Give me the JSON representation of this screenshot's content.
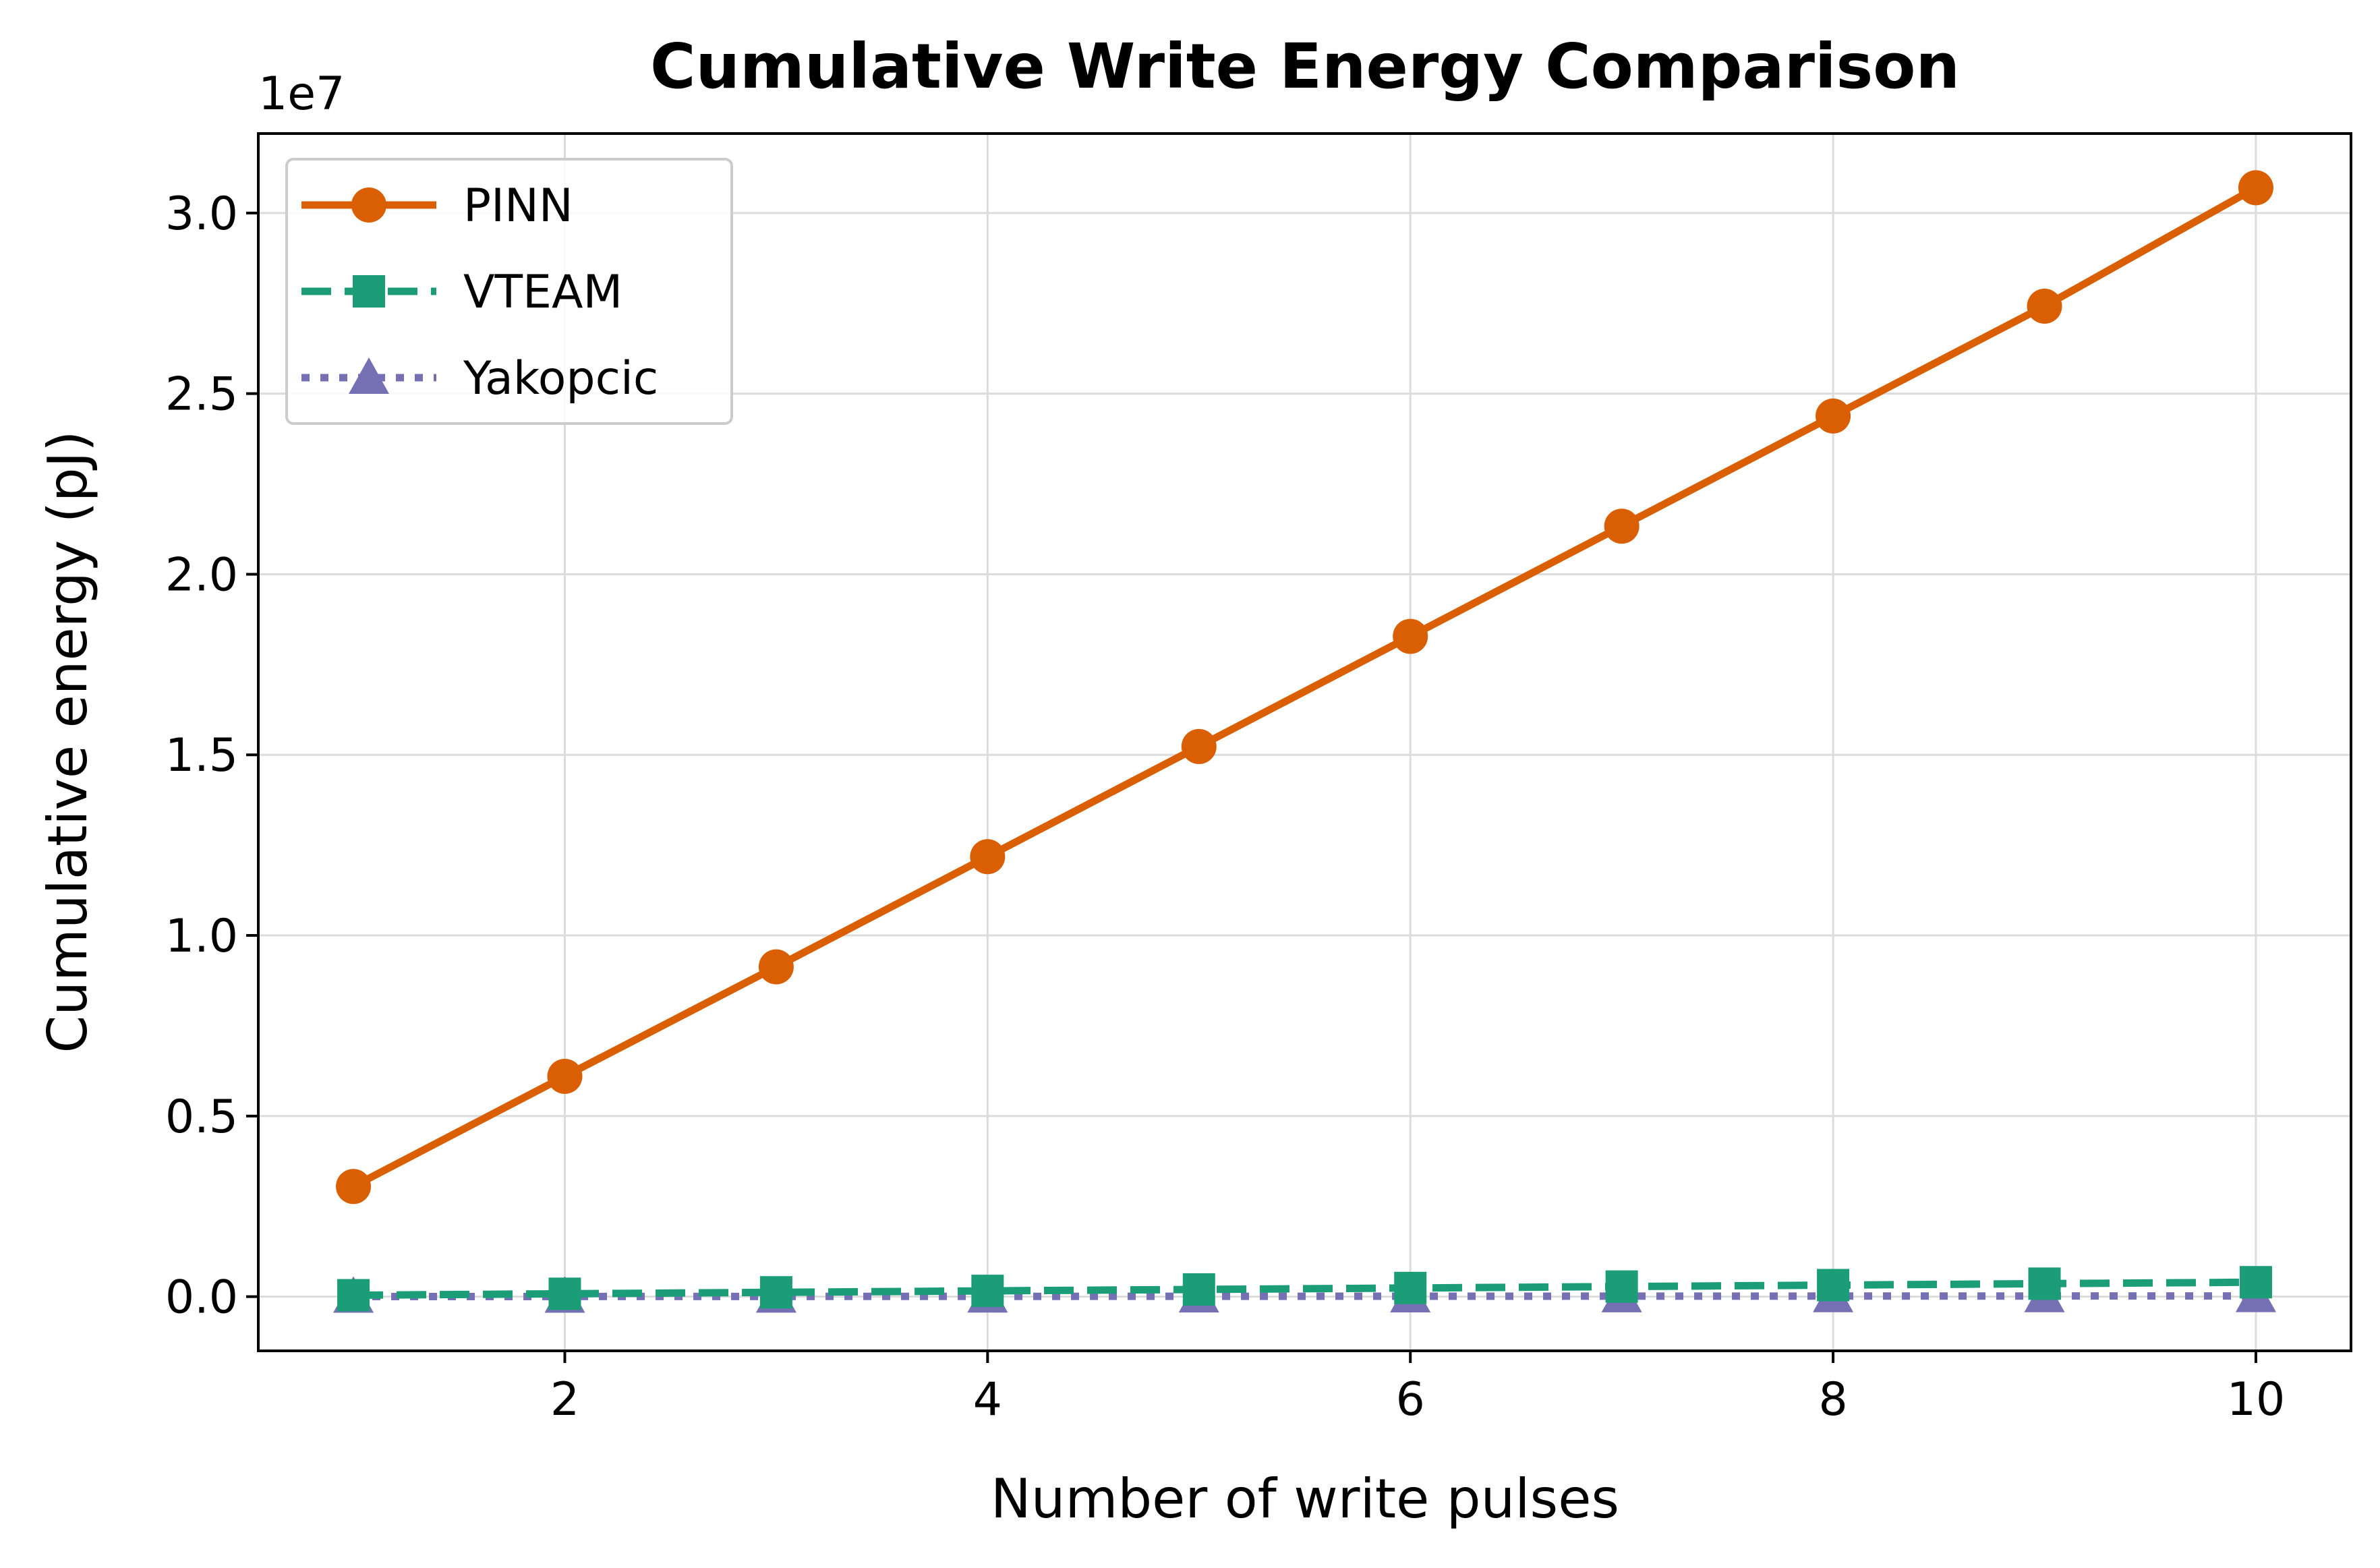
{
  "chart_data": {
    "type": "line",
    "title": "Cumulative Write Energy Comparison",
    "xlabel": "Number of write pulses",
    "ylabel": "Cumulative energy (pJ)",
    "y_offset_label": "1e7",
    "y_scale_factor": 10000000,
    "xlim": [
      0.55,
      10.45
    ],
    "ylim": [
      -1500000,
      32200000
    ],
    "xticks": [
      2,
      4,
      6,
      8,
      10
    ],
    "xtick_labels": [
      "2",
      "4",
      "6",
      "8",
      "10"
    ],
    "yticks": [
      0,
      5000000,
      10000000,
      15000000,
      20000000,
      25000000,
      30000000
    ],
    "ytick_labels": [
      "0.0",
      "0.5",
      "1.0",
      "1.5",
      "2.0",
      "2.5",
      "3.0"
    ],
    "grid": true,
    "legend_position": "top-left",
    "x": [
      1,
      2,
      3,
      4,
      5,
      6,
      7,
      8,
      9,
      10
    ],
    "series": [
      {
        "name": "PINN",
        "color": "#d95f02",
        "marker": "circle",
        "linestyle": "solid",
        "values": [
          3050000,
          6100000,
          9130000,
          12180000,
          15230000,
          18280000,
          21330000,
          24380000,
          27420000,
          30700000
        ]
      },
      {
        "name": "VTEAM",
        "color": "#1b9e77",
        "marker": "square",
        "linestyle": "dashed",
        "values": [
          40000,
          80000,
          120000,
          160000,
          200000,
          240000,
          280000,
          320000,
          360000,
          400000
        ]
      },
      {
        "name": "Yakopcic",
        "color": "#7570b3",
        "marker": "triangle",
        "linestyle": "dotted",
        "values": [
          2000,
          4000,
          6000,
          8000,
          10000,
          12000,
          14000,
          16000,
          18000,
          20000
        ]
      }
    ]
  }
}
